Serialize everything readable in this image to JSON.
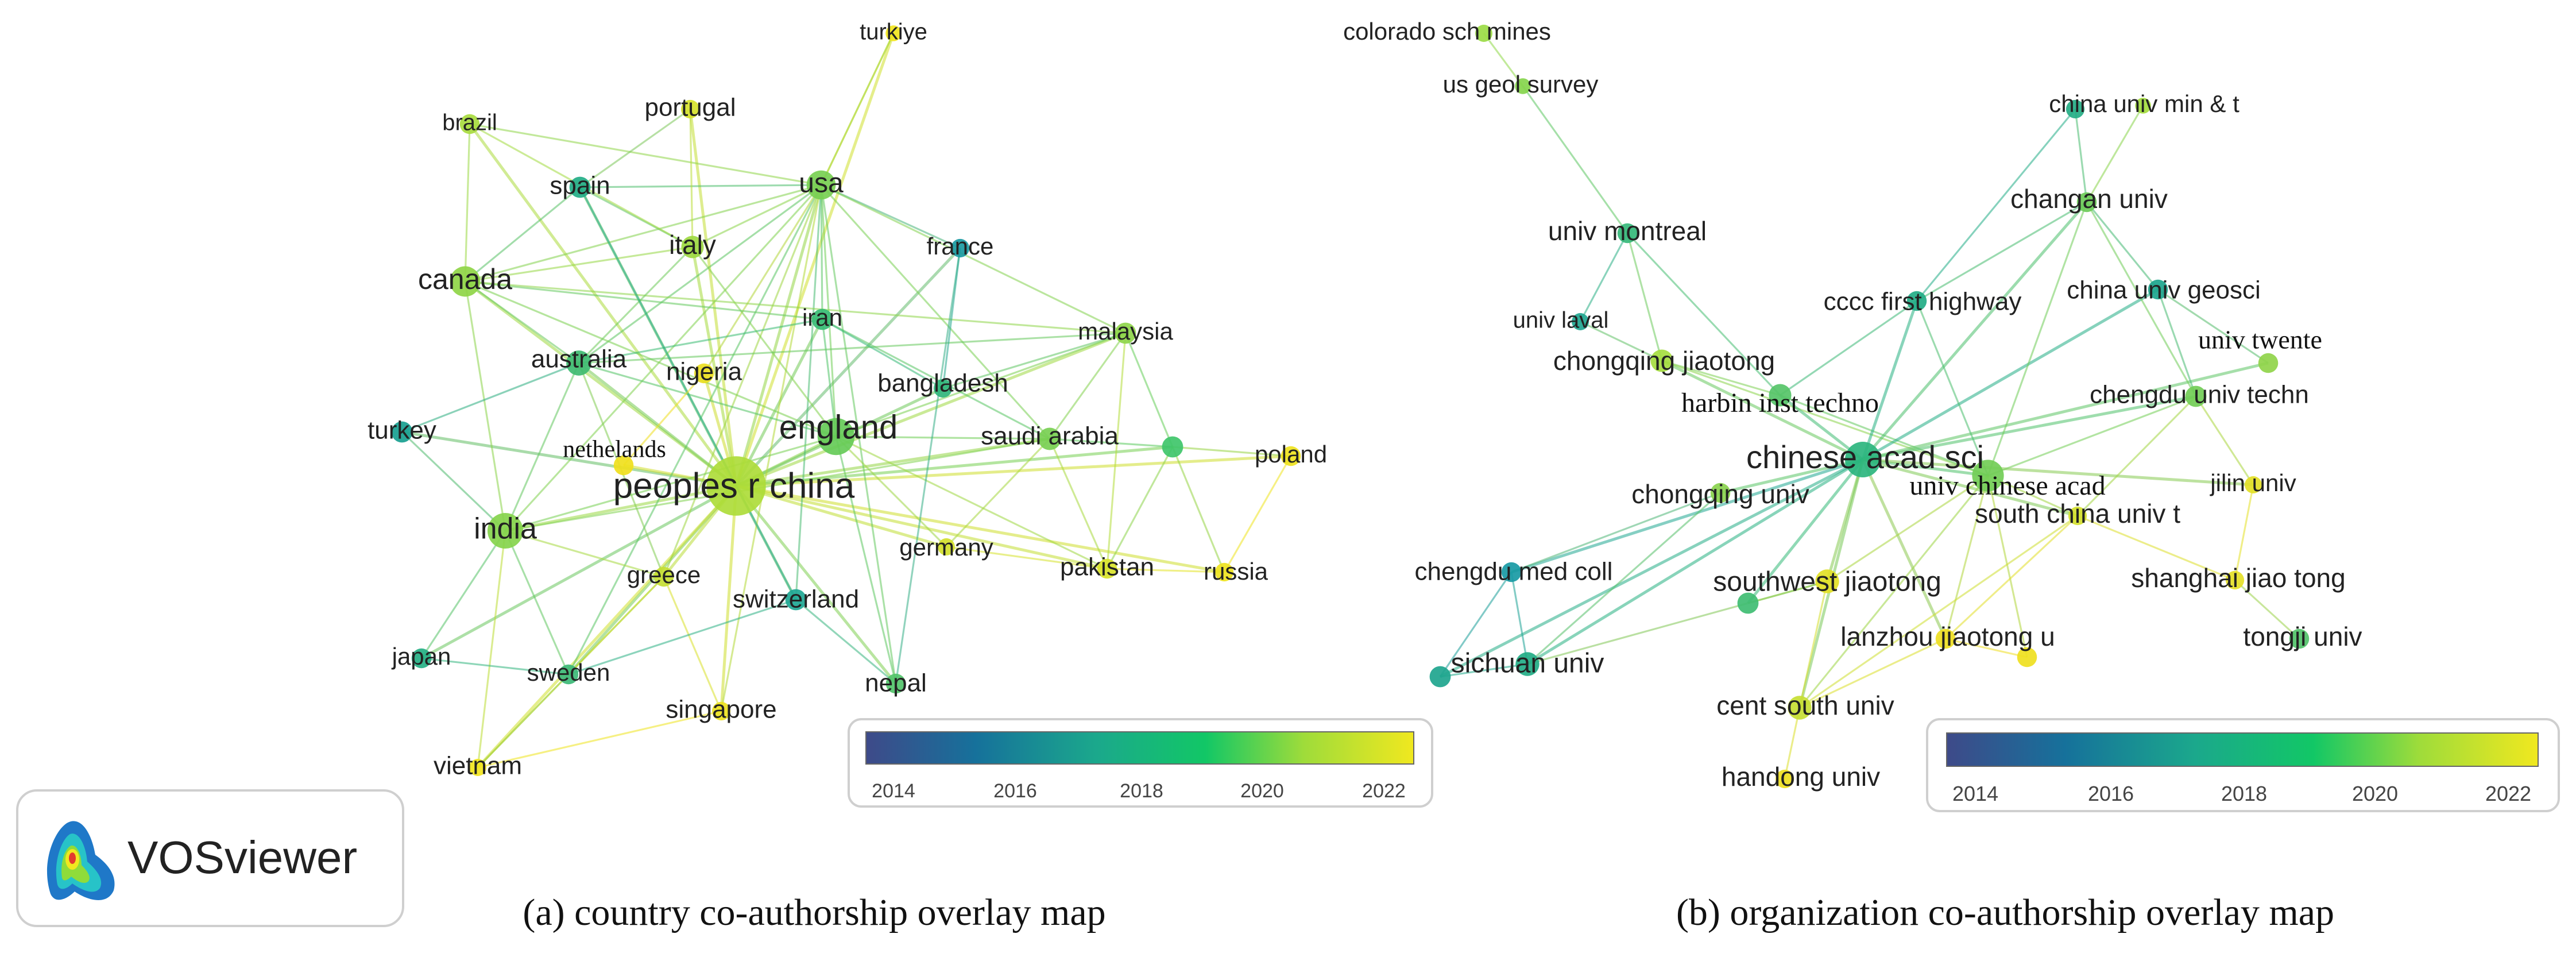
{
  "colors": {
    "c2014": "#3e4a89",
    "c2016": "#16719b",
    "c2018": "#1ba88c",
    "c2020": "#12c766",
    "c2021": "#9fdc3a",
    "c2022": "#f0e81f"
  },
  "panel_a": {
    "caption": "(a) country co-authorship overlay map",
    "legend_ticks": [
      "2014",
      "2016",
      "2018",
      "2020",
      "2022"
    ],
    "nodes": [
      {
        "id": "china",
        "label": "peoples r china",
        "size": 90,
        "color": "#aedc3a"
      },
      {
        "id": "usa",
        "label": "usa",
        "size": 44,
        "color": "#78cf52"
      },
      {
        "id": "england",
        "label": "england",
        "size": 56,
        "color": "#66cb58"
      },
      {
        "id": "india",
        "label": "india",
        "size": 54,
        "color": "#86d44c"
      },
      {
        "id": "canada",
        "label": "canada",
        "size": 46,
        "color": "#8fd547"
      },
      {
        "id": "australia",
        "label": "australia",
        "size": 38,
        "color": "#3fbb71"
      },
      {
        "id": "italy",
        "label": "italy",
        "size": 34,
        "color": "#9dd941"
      },
      {
        "id": "spain",
        "label": "spain",
        "size": 32,
        "color": "#22ad86"
      },
      {
        "id": "iran",
        "label": "iran",
        "size": 32,
        "color": "#37bb74"
      },
      {
        "id": "turkiye",
        "label": "turkiye",
        "size": 24,
        "color": "#f2e51e"
      },
      {
        "id": "brazil",
        "label": "brazil",
        "size": 30,
        "color": "#a8db3f"
      },
      {
        "id": "portugal",
        "label": "portugal",
        "size": 28,
        "color": "#d6e22c"
      },
      {
        "id": "france",
        "label": "france",
        "size": 28,
        "color": "#1a9aa2"
      },
      {
        "id": "malaysia",
        "label": "malaysia",
        "size": 32,
        "color": "#8ed54a"
      },
      {
        "id": "bangladesh",
        "label": "bangladesh",
        "size": 28,
        "color": "#2fb57b"
      },
      {
        "id": "saudi",
        "label": "saudi arabia",
        "size": 34,
        "color": "#78cf52"
      },
      {
        "id": "nigeria",
        "label": "nigeria",
        "size": 30,
        "color": "#ecde22"
      },
      {
        "id": "turkey",
        "label": "turkey",
        "size": 32,
        "color": "#18a090"
      },
      {
        "id": "nethelands",
        "label": "nethelands",
        "size": 30,
        "color": "#f0e01d"
      },
      {
        "id": "poland",
        "label": "poland",
        "size": 30,
        "color": "#efe31f"
      },
      {
        "id": "unknown1",
        "label": "",
        "size": 32,
        "color": "#3fc56a"
      },
      {
        "id": "germany",
        "label": "germany",
        "size": 26,
        "color": "#d2e02c"
      },
      {
        "id": "pakistan",
        "label": "pakistan",
        "size": 30,
        "color": "#d9e32a"
      },
      {
        "id": "russia",
        "label": "russia",
        "size": 28,
        "color": "#eee31f"
      },
      {
        "id": "greece",
        "label": "greece",
        "size": 30,
        "color": "#c5de33"
      },
      {
        "id": "switzerland",
        "label": "switzerland",
        "size": 32,
        "color": "#1fa794"
      },
      {
        "id": "japan",
        "label": "japan",
        "size": 30,
        "color": "#25b084"
      },
      {
        "id": "sweden",
        "label": "sweden",
        "size": 30,
        "color": "#3db977"
      },
      {
        "id": "nepal",
        "label": "nepal",
        "size": 30,
        "color": "#52c36a"
      },
      {
        "id": "singapore",
        "label": "singapore",
        "size": 28,
        "color": "#ede21f"
      },
      {
        "id": "vietnam",
        "label": "vietnam",
        "size": 26,
        "color": "#f2e51e"
      }
    ]
  },
  "panel_b": {
    "caption": "(b) organization co-authorship overlay map",
    "legend_ticks": [
      "2014",
      "2016",
      "2018",
      "2020",
      "2022"
    ],
    "nodes": [
      {
        "id": "colorado",
        "label": "colorado sch mines",
        "size": 26,
        "color": "#9bdb45"
      },
      {
        "id": "usgeol",
        "label": "us geol survey",
        "size": 24,
        "color": "#86d54c"
      },
      {
        "id": "minet",
        "label": "china univ min & t",
        "size": 28,
        "color": "#25ae86"
      },
      {
        "id": "minet2",
        "label": "",
        "size": 24,
        "color": "#a4dc3e"
      },
      {
        "id": "changan",
        "label": "changan univ",
        "size": 30,
        "color": "#6ccb58"
      },
      {
        "id": "montreal",
        "label": "univ montreal",
        "size": 30,
        "color": "#35b87a"
      },
      {
        "id": "cccc",
        "label": "cccc first highway",
        "size": 30,
        "color": "#22ad86"
      },
      {
        "id": "geosci",
        "label": "china univ geosci",
        "size": 30,
        "color": "#1ca58d"
      },
      {
        "id": "laval",
        "label": "univ laval",
        "size": 26,
        "color": "#1fa690"
      },
      {
        "id": "chongqingjt",
        "label": "chongqing jiaotong",
        "size": 34,
        "color": "#a5dc40"
      },
      {
        "id": "twente",
        "label": "univ twente",
        "size": 30,
        "color": "#90d44a"
      },
      {
        "id": "harbin",
        "label": "harbin inst techno",
        "size": 34,
        "color": "#56c468"
      },
      {
        "id": "chengdutech",
        "label": "chengdu univ techn",
        "size": 32,
        "color": "#72cd56"
      },
      {
        "id": "cas",
        "label": "chinese acad sci",
        "size": 54,
        "color": "#2bb57e"
      },
      {
        "id": "ucas",
        "label": "univ chinese acad",
        "size": 48,
        "color": "#72cd56"
      },
      {
        "id": "chongqingu",
        "label": "chongqing univ",
        "size": 30,
        "color": "#8ad34e"
      },
      {
        "id": "jilin",
        "label": "jilin univ",
        "size": 26,
        "color": "#e3e026"
      },
      {
        "id": "scut",
        "label": "south china univ t",
        "size": 28,
        "color": "#d4df2e"
      },
      {
        "id": "chengdumed",
        "label": "chengdu med coll",
        "size": 30,
        "color": "#189aa4"
      },
      {
        "id": "southwest",
        "label": "southwest jiaotong",
        "size": 36,
        "color": "#e2df26"
      },
      {
        "id": "sjtu",
        "label": "shanghai jiao tong",
        "size": 28,
        "color": "#e4e027"
      },
      {
        "id": "green1",
        "label": "",
        "size": 32,
        "color": "#3fbd72"
      },
      {
        "id": "lanzhou",
        "label": "lanzhou jiaotong u",
        "size": 30,
        "color": "#eede22"
      },
      {
        "id": "yellow1",
        "label": "",
        "size": 30,
        "color": "#efe01f"
      },
      {
        "id": "tongji",
        "label": "tongji univ",
        "size": 30,
        "color": "#52c36a"
      },
      {
        "id": "sichuan",
        "label": "sichuan univ",
        "size": 36,
        "color": "#22ad86"
      },
      {
        "id": "teal1",
        "label": "",
        "size": 32,
        "color": "#1ea58e"
      },
      {
        "id": "centsouth",
        "label": "cent south univ",
        "size": 36,
        "color": "#c7de33"
      },
      {
        "id": "handong",
        "label": "handong univ",
        "size": 28,
        "color": "#efe01f"
      }
    ]
  },
  "vosviewer": {
    "logo_text": "VOSviewer"
  }
}
